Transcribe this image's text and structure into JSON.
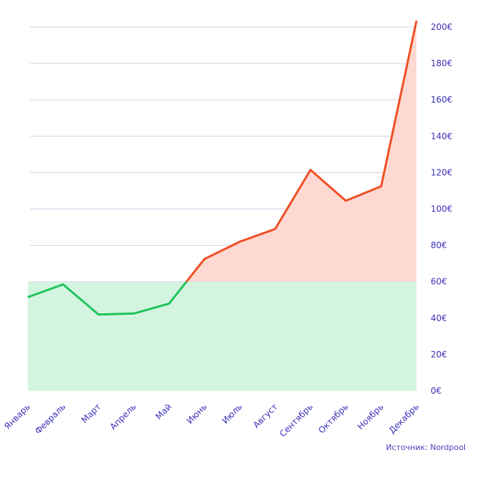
{
  "chart_data": {
    "type": "area",
    "categories": [
      "Январь",
      "Февраль",
      "Март",
      "Апрель",
      "Май",
      "Июнь",
      "Июль",
      "Август",
      "Сентябрь",
      "Октябрь",
      "Ноябрь",
      "Декабрь"
    ],
    "values": [
      51.5,
      58.5,
      42,
      42.5,
      48,
      72.5,
      82,
      89,
      121.5,
      104.5,
      112.5,
      203.5
    ],
    "threshold": 60,
    "ylim": [
      0,
      200
    ],
    "yticks": [
      0,
      20,
      40,
      60,
      80,
      100,
      120,
      140,
      160,
      180,
      200
    ],
    "ytick_suffix": "€",
    "grid": true,
    "colors": {
      "below_line": "#1fc35a",
      "below_fill": "#d3f5e0",
      "above_line": "#f04e23",
      "above_fill": "#fdd9d1",
      "grid": "#d4d0e6",
      "text": "#3b2fb8"
    }
  },
  "source": "Источник: Nordpool"
}
